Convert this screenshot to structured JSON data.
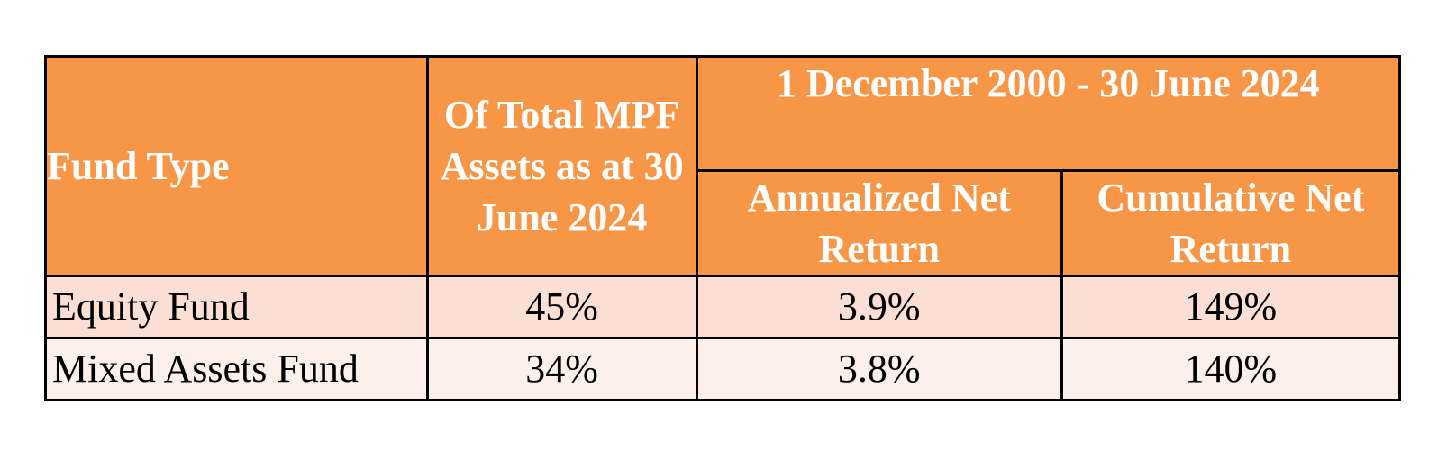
{
  "table": {
    "headers": {
      "fund_type": "Fund Type",
      "of_total_assets": "Of Total MPF Assets as at 30 June 2024",
      "period": "1 December 2000 - 30 June 2024",
      "annualized": "Annualized Net Return",
      "cumulative": "Cumulative Net Return"
    },
    "rows": [
      {
        "fund_type": "Equity Fund",
        "of_total_assets": "45%",
        "annualized": "3.9%",
        "cumulative": "149%"
      },
      {
        "fund_type": "Mixed Assets Fund",
        "of_total_assets": "34%",
        "annualized": "3.8%",
        "cumulative": "140%"
      }
    ],
    "colors": {
      "header_bg": "#f79646",
      "header_text": "#ffffff",
      "row_1_bg": "#fbdfd5",
      "row_2_bg": "#fdefea",
      "border": "#000000"
    }
  }
}
